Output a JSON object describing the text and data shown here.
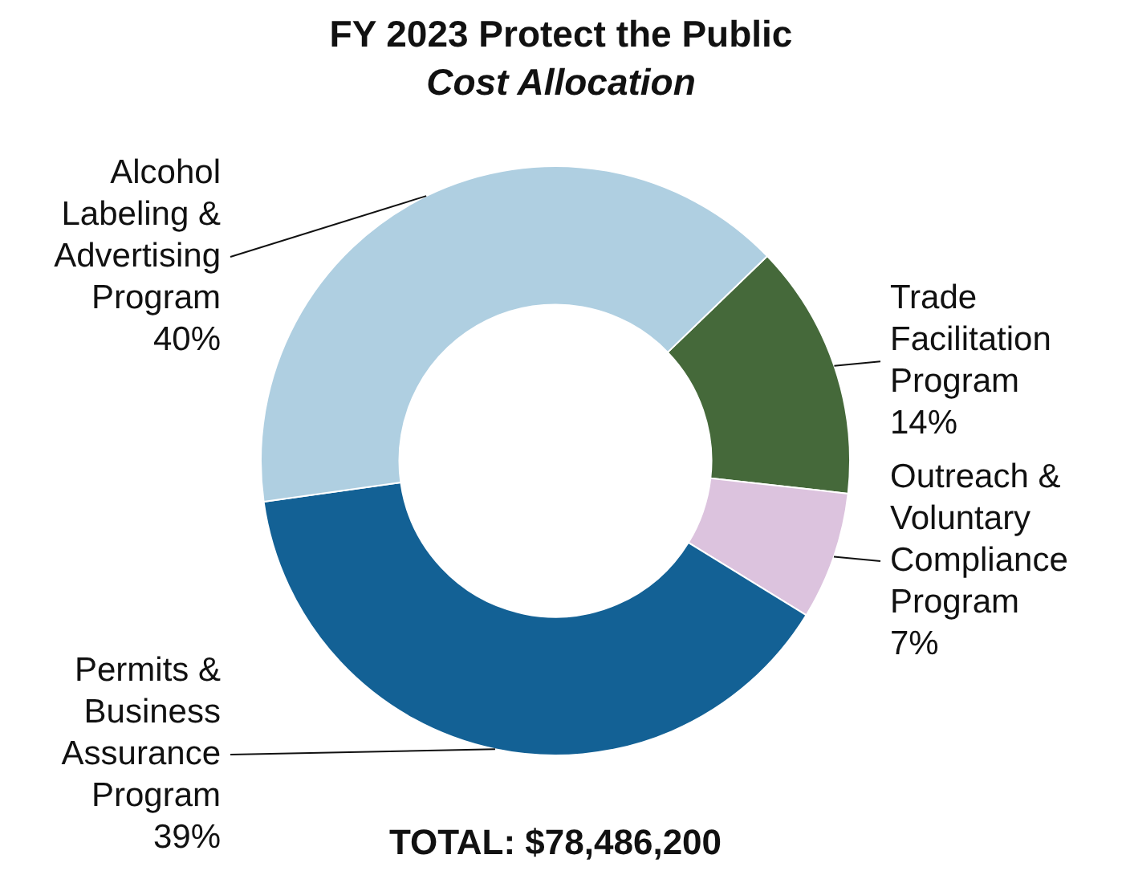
{
  "chart_data": {
    "type": "donut",
    "title": "FY 2023 Protect the Public",
    "subtitle": "Cost Allocation",
    "categories": [
      "Trade Facilitation Program",
      "Outreach & Voluntary Compliance Program",
      "Permits & Business Assurance Program",
      "Alcohol Labeling & Advertising Program"
    ],
    "values": [
      14,
      7,
      39,
      40
    ],
    "value_labels": [
      "14%",
      "7%",
      "39%",
      "40%"
    ],
    "colors": [
      "#45693a",
      "#dcc3de",
      "#136195",
      "#afcfe1"
    ],
    "annotations": [
      "TOTAL: $78,486,200"
    ]
  }
}
